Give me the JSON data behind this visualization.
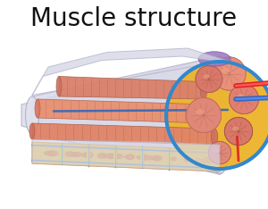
{
  "title": "Muscle structure",
  "title_fontsize": 20,
  "bg_color": "#ffffff",
  "outer_muscle_light": "#dddde8",
  "outer_muscle_mid": "#c8c8d8",
  "outer_muscle_dark": "#b0b0c8",
  "fascia_blue": "#3388cc",
  "fascicle_face": "#e8907a",
  "fascicle_dark": "#c87060",
  "fascicle_stripe": "#b05540",
  "fascicle_end": "#d4806a",
  "perimysium_yellow": "#f0c030",
  "perimysium_orange": "#e89020",
  "perimysium_hole": "#e07818",
  "septa_yellow": "#f5d800",
  "septa_blue": "#4488cc",
  "blood_red": "#dd2222",
  "blood_blue": "#3366bb",
  "purple": "#9977aa",
  "endomysium_orange": "#e07828"
}
